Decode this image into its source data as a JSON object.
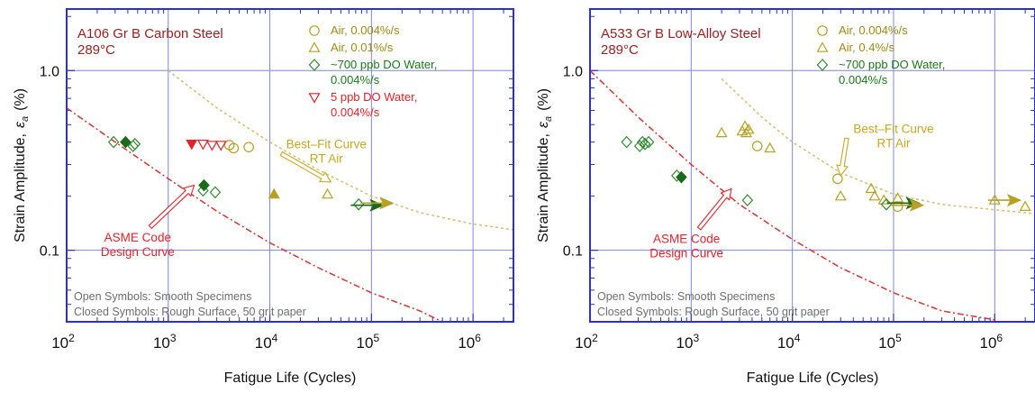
{
  "chart_data": [
    {
      "type": "scatter",
      "title": "A106 Gr B Carbon Steel",
      "subtitle": "289°C",
      "xlabel": "Fatigue Life (Cycles)",
      "ylabel_main": "Strain Amplitude,",
      "ylabel_symbol": "ε",
      "ylabel_sub": "a",
      "ylabel_unit": "(%)",
      "x_scale": "log",
      "y_scale": "log",
      "xlim": [
        100,
        2500000
      ],
      "ylim": [
        0.04,
        2.2
      ],
      "x_ticks": [
        {
          "value": 100,
          "base": "10",
          "exp": "2"
        },
        {
          "value": 1000,
          "base": "10",
          "exp": "3"
        },
        {
          "value": 10000,
          "base": "10",
          "exp": "4"
        },
        {
          "value": 100000,
          "base": "10",
          "exp": "5"
        },
        {
          "value": 1000000,
          "base": "10",
          "exp": "6"
        }
      ],
      "y_ticks": [
        {
          "value": 0.1,
          "label": "0.1"
        },
        {
          "value": 1.0,
          "label": "1.0"
        }
      ],
      "grid": true,
      "legend": [
        {
          "label": "Air, 0.004%/s",
          "marker": "circle",
          "color": "#b8a020"
        },
        {
          "label": "Air, 0.01%/s",
          "marker": "triangle-up",
          "color": "#b8a020"
        },
        {
          "label": "~700 ppb DO Water,",
          "label2": "0.004%/s",
          "marker": "diamond",
          "color": "#2e8b2e"
        },
        {
          "label": "5 ppb DO Water,",
          "label2": "0.004%/s",
          "marker": "triangle-down",
          "color": "#e8202a"
        }
      ],
      "series": [
        {
          "marker": "circle",
          "color": "#b8a020",
          "filled": false,
          "points": [
            [
              4000,
              0.385
            ],
            [
              4400,
              0.37
            ],
            [
              6200,
              0.375
            ]
          ]
        },
        {
          "marker": "triangle-up",
          "color": "#b8a020",
          "filled": false,
          "points": [
            [
              37000,
              0.205
            ]
          ]
        },
        {
          "marker": "triangle-up",
          "color": "#b8a020",
          "filled": true,
          "points": [
            [
              11000,
              0.205
            ]
          ]
        },
        {
          "marker": "diamond",
          "color": "#2e8b2e",
          "filled": false,
          "points": [
            [
              290,
              0.4
            ],
            [
              450,
              0.38
            ],
            [
              470,
              0.39
            ],
            [
              2200,
              0.215
            ],
            [
              2900,
              0.21
            ],
            [
              75000,
              0.18
            ]
          ]
        },
        {
          "marker": "diamond",
          "color": "#1a6a1a",
          "filled": true,
          "points": [
            [
              380,
              0.4
            ],
            [
              2250,
              0.23
            ]
          ]
        },
        {
          "marker": "triangle-down",
          "color": "#e8202a",
          "filled": false,
          "points": [
            [
              2200,
              0.39
            ],
            [
              2700,
              0.385
            ],
            [
              3300,
              0.385
            ]
          ]
        },
        {
          "marker": "triangle-down",
          "color": "#e8202a",
          "filled": true,
          "points": [
            [
              1700,
              0.39
            ]
          ]
        }
      ],
      "runouts": [
        {
          "x": 80000,
          "y": 0.178,
          "color": "#1a6a1a"
        },
        {
          "x": 100000,
          "y": 0.183,
          "color": "#b8a020"
        }
      ],
      "curves": [
        {
          "name": "Best-Fit Curve RT Air",
          "color": "#d0c070",
          "points": [
            [
              1000,
              1.0
            ],
            [
              3000,
              0.62
            ],
            [
              10000,
              0.4
            ],
            [
              30000,
              0.28
            ],
            [
              100000,
              0.2
            ],
            [
              300000,
              0.162
            ],
            [
              1000000,
              0.14
            ],
            [
              2500000,
              0.13
            ]
          ]
        },
        {
          "name": "ASME Code Design Curve",
          "color": "#e03030",
          "points": [
            [
              100,
              0.62
            ],
            [
              300,
              0.4
            ],
            [
              1000,
              0.25
            ],
            [
              3000,
              0.165
            ],
            [
              10000,
              0.11
            ],
            [
              30000,
              0.08
            ],
            [
              100000,
              0.058
            ],
            [
              300000,
              0.046
            ],
            [
              500000,
              0.04
            ]
          ]
        }
      ],
      "annotations": [
        {
          "lines": [
            "Best–Fit Curve",
            "RT Air"
          ],
          "color": "#c8a820",
          "text_x": 36000,
          "text_y": 0.37,
          "arrow_to": [
            40000,
            0.24
          ]
        },
        {
          "lines": [
            "ASME Code",
            "Design Curve"
          ],
          "color": "#e8202a",
          "text_x": 500,
          "text_y": 0.112,
          "arrow_to": [
            1800,
            0.23
          ]
        }
      ],
      "footnotes": [
        "Open Symbols: Smooth Specimens",
        "Closed Symbols: Rough Surface, 50 grit paper"
      ]
    },
    {
      "type": "scatter",
      "title": "A533 Gr B Low-Alloy Steel",
      "subtitle": "289°C",
      "xlabel": "Fatigue Life (Cycles)",
      "ylabel_main": "Strain Amplitude,",
      "ylabel_symbol": "ε",
      "ylabel_sub": "a",
      "ylabel_unit": "(%)",
      "x_scale": "log",
      "y_scale": "log",
      "xlim": [
        100,
        2500000
      ],
      "ylim": [
        0.04,
        2.2
      ],
      "x_ticks": [
        {
          "value": 100,
          "base": "10",
          "exp": "2"
        },
        {
          "value": 1000,
          "base": "10",
          "exp": "3"
        },
        {
          "value": 10000,
          "base": "10",
          "exp": "4"
        },
        {
          "value": 100000,
          "base": "10",
          "exp": "5"
        },
        {
          "value": 1000000,
          "base": "10",
          "exp": "6"
        }
      ],
      "y_ticks": [
        {
          "value": 0.1,
          "label": "0.1"
        },
        {
          "value": 1.0,
          "label": "1.0"
        }
      ],
      "grid": true,
      "legend": [
        {
          "label": "Air, 0.004%/s",
          "marker": "circle",
          "color": "#b8a020"
        },
        {
          "label": "Air, 0.4%/s",
          "marker": "triangle-up",
          "color": "#b8a020"
        },
        {
          "label": "~700 ppb DO Water,",
          "label2": "0.004%/s",
          "marker": "diamond",
          "color": "#2e8b2e"
        }
      ],
      "series": [
        {
          "marker": "circle",
          "color": "#b8a020",
          "filled": false,
          "points": [
            [
              4500,
              0.38
            ],
            [
              28000,
              0.25
            ],
            [
              110000,
              0.175
            ]
          ]
        },
        {
          "marker": "triangle-up",
          "color": "#b8a020",
          "filled": false,
          "points": [
            [
              2000,
              0.45
            ],
            [
              3200,
              0.46
            ],
            [
              3400,
              0.49
            ],
            [
              3500,
              0.45
            ],
            [
              3700,
              0.47
            ],
            [
              6000,
              0.37
            ],
            [
              30000,
              0.2
            ],
            [
              60000,
              0.22
            ],
            [
              65000,
              0.2
            ],
            [
              80000,
              0.19
            ],
            [
              110000,
              0.195
            ],
            [
              1000000,
              0.19
            ],
            [
              2000000,
              0.175
            ]
          ]
        },
        {
          "marker": "diamond",
          "color": "#2e8b2e",
          "filled": false,
          "points": [
            [
              230,
              0.4
            ],
            [
              310,
              0.38
            ],
            [
              330,
              0.4
            ],
            [
              350,
              0.39
            ],
            [
              380,
              0.4
            ],
            [
              720,
              0.26
            ],
            [
              3600,
              0.19
            ],
            [
              85000,
              0.18
            ]
          ]
        },
        {
          "marker": "diamond",
          "color": "#1a6a1a",
          "filled": true,
          "points": [
            [
              800,
              0.255
            ]
          ]
        }
      ],
      "runouts": [
        {
          "x": 110000,
          "y": 0.183,
          "color": "#1a6a1a"
        },
        {
          "x": 120000,
          "y": 0.178,
          "color": "#b8a020"
        },
        {
          "x": 1100000,
          "y": 0.19,
          "color": "#b8a020"
        }
      ],
      "curves": [
        {
          "name": "Best-Fit Curve RT Air",
          "color": "#d0c070",
          "points": [
            [
              2000,
              0.9
            ],
            [
              5000,
              0.55
            ],
            [
              10000,
              0.4
            ],
            [
              30000,
              0.27
            ],
            [
              100000,
              0.205
            ],
            [
              300000,
              0.18
            ],
            [
              1000000,
              0.168
            ],
            [
              2500000,
              0.16
            ]
          ]
        },
        {
          "name": "ASME Code Design Curve",
          "color": "#e03030",
          "points": [
            [
              100,
              1.0
            ],
            [
              300,
              0.55
            ],
            [
              1000,
              0.3
            ],
            [
              3000,
              0.18
            ],
            [
              10000,
              0.115
            ],
            [
              30000,
              0.08
            ],
            [
              100000,
              0.058
            ],
            [
              300000,
              0.046
            ],
            [
              1000000,
              0.041
            ]
          ]
        }
      ],
      "annotations": [
        {
          "lines": [
            "Best–Fit Curve",
            "RT Air"
          ],
          "color": "#c8a820",
          "text_x": 100000,
          "text_y": 0.45,
          "arrow_to": [
            30000,
            0.26
          ]
        },
        {
          "lines": [
            "ASME Code",
            "Design Curve"
          ],
          "color": "#e8202a",
          "text_x": 900,
          "text_y": 0.11,
          "arrow_to": [
            2500,
            0.22
          ]
        }
      ],
      "footnotes": [
        "Open Symbols: Smooth Specimens",
        "Closed Symbols: Rough Surface, 50 grit paper"
      ]
    }
  ]
}
